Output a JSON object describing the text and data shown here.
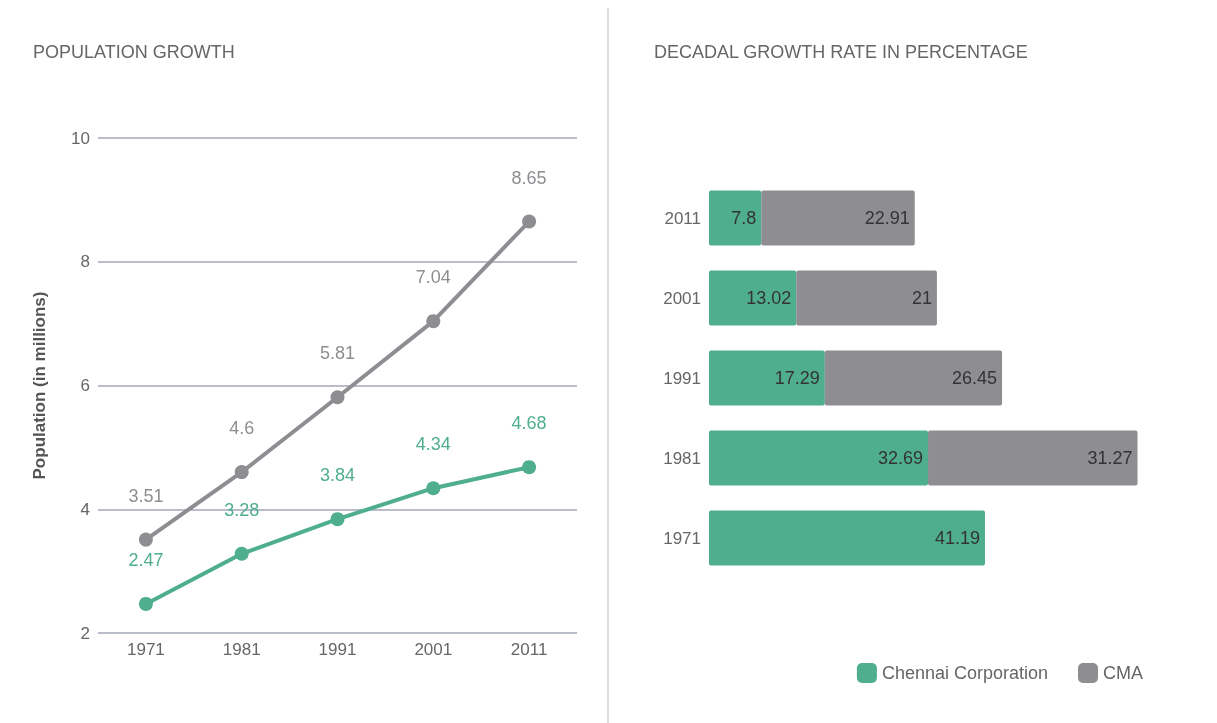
{
  "chart_data": [
    {
      "type": "line",
      "title": "POPULATION GROWTH",
      "ylabel": "Population (in millions)",
      "categories": [
        "1971",
        "1981",
        "1991",
        "2001",
        "2011"
      ],
      "series": [
        {
          "color": "#8e8e92",
          "values": [
            3.51,
            4.6,
            5.81,
            7.04,
            8.65
          ]
        },
        {
          "color": "#4fae8e",
          "values": [
            2.47,
            3.28,
            3.84,
            4.34,
            4.68
          ]
        }
      ],
      "ylim": [
        2,
        10
      ],
      "yticks": [
        2,
        4,
        6,
        8,
        10
      ],
      "grid": "y",
      "marker": "circle",
      "line_style": "solid",
      "data_labels": true
    },
    {
      "type": "bar",
      "orientation": "horizontal",
      "stacked": true,
      "title": "DECADAL GROWTH RATE IN PERCENTAGE",
      "categories": [
        "2011",
        "2001",
        "1991",
        "1981",
        "1971"
      ],
      "series": [
        {
          "name": "Chennai Corporation",
          "color": "#4fae8e",
          "values": [
            7.8,
            13.02,
            17.29,
            32.69,
            41.19
          ]
        },
        {
          "name": "CMA",
          "color": "#8e8e92",
          "values": [
            22.91,
            21,
            26.45,
            31.27,
            null
          ]
        }
      ],
      "legend": "bottom",
      "data_labels": true
    }
  ]
}
